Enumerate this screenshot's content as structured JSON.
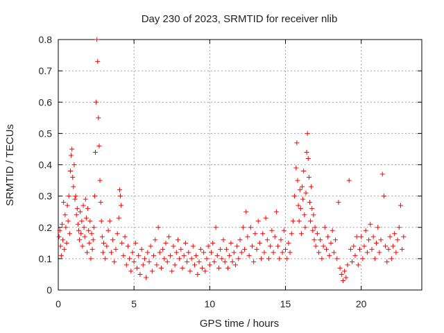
{
  "chart_data": {
    "type": "scatter",
    "title": "Day 230 of 2023, SRMTID for receiver nlib",
    "xlabel": "GPS time / hours",
    "ylabel": "SRMTID / TECUs",
    "xlim": [
      0,
      24
    ],
    "ylim": [
      0,
      0.8
    ],
    "xticks": [
      "0",
      "5",
      "10",
      "15",
      "20"
    ],
    "yticks": [
      "0",
      "0.1",
      "0.2",
      "0.3",
      "0.4",
      "0.5",
      "0.6",
      "0.7",
      "0.8"
    ],
    "grid": true,
    "marker": "+",
    "series": [
      {
        "name": "SRMTID",
        "color": "#ff0000",
        "points": [
          [
            0.05,
            0.17
          ],
          [
            0.1,
            0.19
          ],
          [
            0.15,
            0.14
          ],
          [
            0.2,
            0.11
          ],
          [
            0.25,
            0.21
          ],
          [
            0.3,
            0.16
          ],
          [
            0.35,
            0.28
          ],
          [
            0.4,
            0.13
          ],
          [
            0.45,
            0.24
          ],
          [
            0.5,
            0.2
          ],
          [
            0.55,
            0.15
          ],
          [
            0.6,
            0.27
          ],
          [
            0.65,
            0.22
          ],
          [
            0.7,
            0.3
          ],
          [
            0.75,
            0.18
          ],
          [
            0.8,
            0.38
          ],
          [
            0.85,
            0.43
          ],
          [
            0.9,
            0.45
          ],
          [
            0.95,
            0.36
          ],
          [
            1.0,
            0.33
          ],
          [
            1.05,
            0.4
          ],
          [
            1.1,
            0.29
          ],
          [
            1.15,
            0.3
          ],
          [
            1.2,
            0.24
          ],
          [
            1.25,
            0.26
          ],
          [
            1.3,
            0.21
          ],
          [
            1.35,
            0.19
          ],
          [
            1.4,
            0.16
          ],
          [
            1.45,
            0.25
          ],
          [
            1.5,
            0.18
          ],
          [
            1.55,
            0.22
          ],
          [
            1.6,
            0.14
          ],
          [
            1.65,
            0.27
          ],
          [
            1.7,
            0.2
          ],
          [
            1.75,
            0.17
          ],
          [
            1.8,
            0.29
          ],
          [
            1.85,
            0.23
          ],
          [
            1.9,
            0.12
          ],
          [
            1.95,
            0.26
          ],
          [
            2.0,
            0.19
          ],
          [
            2.05,
            0.15
          ],
          [
            2.1,
            0.22
          ],
          [
            2.15,
            0.1
          ],
          [
            2.2,
            0.18
          ],
          [
            2.25,
            0.13
          ],
          [
            2.3,
            0.16
          ],
          [
            2.35,
            0.2
          ],
          [
            2.4,
            0.3
          ],
          [
            2.45,
            0.44
          ],
          [
            2.5,
            0.6
          ],
          [
            2.55,
            0.8
          ],
          [
            2.6,
            0.73
          ],
          [
            2.65,
            0.55
          ],
          [
            2.7,
            0.46
          ],
          [
            2.75,
            0.35
          ],
          [
            2.8,
            0.28
          ],
          [
            2.85,
            0.22
          ],
          [
            2.9,
            0.17
          ],
          [
            2.95,
            0.12
          ],
          [
            3.0,
            0.15
          ],
          [
            3.1,
            0.1
          ],
          [
            3.2,
            0.14
          ],
          [
            3.3,
            0.19
          ],
          [
            3.4,
            0.22
          ],
          [
            3.5,
            0.12
          ],
          [
            3.6,
            0.16
          ],
          [
            3.7,
            0.09
          ],
          [
            3.8,
            0.13
          ],
          [
            3.9,
            0.18
          ],
          [
            4.0,
            0.23
          ],
          [
            4.05,
            0.32
          ],
          [
            4.1,
            0.3
          ],
          [
            4.15,
            0.27
          ],
          [
            4.2,
            0.15
          ],
          [
            4.3,
            0.11
          ],
          [
            4.4,
            0.17
          ],
          [
            4.5,
            0.08
          ],
          [
            4.6,
            0.14
          ],
          [
            4.7,
            0.1
          ],
          [
            4.8,
            0.06
          ],
          [
            4.9,
            0.12
          ],
          [
            5.0,
            0.09
          ],
          [
            5.1,
            0.15
          ],
          [
            5.2,
            0.07
          ],
          [
            5.3,
            0.11
          ],
          [
            5.4,
            0.05
          ],
          [
            5.5,
            0.13
          ],
          [
            5.6,
            0.08
          ],
          [
            5.7,
            0.1
          ],
          [
            5.8,
            0.04
          ],
          [
            5.9,
            0.12
          ],
          [
            6.0,
            0.09
          ],
          [
            6.1,
            0.14
          ],
          [
            6.2,
            0.06
          ],
          [
            6.3,
            0.11
          ],
          [
            6.4,
            0.16
          ],
          [
            6.5,
            0.08
          ],
          [
            6.6,
            0.2
          ],
          [
            6.7,
            0.12
          ],
          [
            6.8,
            0.07
          ],
          [
            6.9,
            0.13
          ],
          [
            7.0,
            0.1
          ],
          [
            7.1,
            0.15
          ],
          [
            7.2,
            0.09
          ],
          [
            7.3,
            0.17
          ],
          [
            7.4,
            0.11
          ],
          [
            7.5,
            0.06
          ],
          [
            7.6,
            0.14
          ],
          [
            7.7,
            0.08
          ],
          [
            7.8,
            0.12
          ],
          [
            7.9,
            0.16
          ],
          [
            8.0,
            0.1
          ],
          [
            8.1,
            0.13
          ],
          [
            8.2,
            0.07
          ],
          [
            8.3,
            0.11
          ],
          [
            8.4,
            0.15
          ],
          [
            8.5,
            0.09
          ],
          [
            8.6,
            0.12
          ],
          [
            8.7,
            0.06
          ],
          [
            8.8,
            0.1
          ],
          [
            8.9,
            0.14
          ],
          [
            9.0,
            0.08
          ],
          [
            9.1,
            0.11
          ],
          [
            9.2,
            0.05
          ],
          [
            9.3,
            0.09
          ],
          [
            9.4,
            0.13
          ],
          [
            9.5,
            0.07
          ],
          [
            9.6,
            0.12
          ],
          [
            9.7,
            0.06
          ],
          [
            9.8,
            0.1
          ],
          [
            9.9,
            0.14
          ],
          [
            10.0,
            0.08
          ],
          [
            10.1,
            0.12
          ],
          [
            10.2,
            0.15
          ],
          [
            10.3,
            0.09
          ],
          [
            10.4,
            0.2
          ],
          [
            10.5,
            0.11
          ],
          [
            10.6,
            0.07
          ],
          [
            10.7,
            0.13
          ],
          [
            10.8,
            0.1
          ],
          [
            10.9,
            0.16
          ],
          [
            11.0,
            0.09
          ],
          [
            11.1,
            0.13
          ],
          [
            11.2,
            0.07
          ],
          [
            11.3,
            0.11
          ],
          [
            11.4,
            0.15
          ],
          [
            11.5,
            0.09
          ],
          [
            11.6,
            0.12
          ],
          [
            11.7,
            0.08
          ],
          [
            11.8,
            0.14
          ],
          [
            11.9,
            0.1
          ],
          [
            12.0,
            0.16
          ],
          [
            12.1,
            0.12
          ],
          [
            12.2,
            0.2
          ],
          [
            12.3,
            0.13
          ],
          [
            12.4,
            0.25
          ],
          [
            12.5,
            0.17
          ],
          [
            12.6,
            0.11
          ],
          [
            12.7,
            0.2
          ],
          [
            12.8,
            0.14
          ],
          [
            12.9,
            0.09
          ],
          [
            13.0,
            0.18
          ],
          [
            13.1,
            0.13
          ],
          [
            13.2,
            0.22
          ],
          [
            13.3,
            0.15
          ],
          [
            13.4,
            0.1
          ],
          [
            13.5,
            0.18
          ],
          [
            13.6,
            0.12
          ],
          [
            13.7,
            0.23
          ],
          [
            13.8,
            0.16
          ],
          [
            13.9,
            0.1
          ],
          [
            14.0,
            0.14
          ],
          [
            14.1,
            0.19
          ],
          [
            14.2,
            0.12
          ],
          [
            14.3,
            0.17
          ],
          [
            14.4,
            0.25
          ],
          [
            14.5,
            0.14
          ],
          [
            14.6,
            0.1
          ],
          [
            14.7,
            0.16
          ],
          [
            14.8,
            0.12
          ],
          [
            14.9,
            0.19
          ],
          [
            15.0,
            0.13
          ],
          [
            15.1,
            0.1
          ],
          [
            15.2,
            0.15
          ],
          [
            15.3,
            0.12
          ],
          [
            15.4,
            0.18
          ],
          [
            15.5,
            0.22
          ],
          [
            15.6,
            0.3
          ],
          [
            15.7,
            0.39
          ],
          [
            15.75,
            0.47
          ],
          [
            15.8,
            0.35
          ],
          [
            15.85,
            0.27
          ],
          [
            15.9,
            0.22
          ],
          [
            15.95,
            0.32
          ],
          [
            16.0,
            0.26
          ],
          [
            16.05,
            0.18
          ],
          [
            16.1,
            0.33
          ],
          [
            16.15,
            0.29
          ],
          [
            16.2,
            0.38
          ],
          [
            16.25,
            0.24
          ],
          [
            16.3,
            0.2
          ],
          [
            16.35,
            0.31
          ],
          [
            16.4,
            0.44
          ],
          [
            16.45,
            0.5
          ],
          [
            16.5,
            0.42
          ],
          [
            16.55,
            0.36
          ],
          [
            16.6,
            0.28
          ],
          [
            16.65,
            0.22
          ],
          [
            16.7,
            0.33
          ],
          [
            16.75,
            0.26
          ],
          [
            16.8,
            0.19
          ],
          [
            16.85,
            0.24
          ],
          [
            16.9,
            0.16
          ],
          [
            16.95,
            0.2
          ],
          [
            17.0,
            0.14
          ],
          [
            17.1,
            0.18
          ],
          [
            17.2,
            0.12
          ],
          [
            17.3,
            0.16
          ],
          [
            17.4,
            0.1
          ],
          [
            17.5,
            0.14
          ],
          [
            17.6,
            0.2
          ],
          [
            17.7,
            0.13
          ],
          [
            17.8,
            0.17
          ],
          [
            17.9,
            0.11
          ],
          [
            18.0,
            0.15
          ],
          [
            18.1,
            0.19
          ],
          [
            18.2,
            0.12
          ],
          [
            18.3,
            0.16
          ],
          [
            18.4,
            0.1
          ],
          [
            18.5,
            0.28
          ],
          [
            18.6,
            0.07
          ],
          [
            18.7,
            0.05
          ],
          [
            18.8,
            0.03
          ],
          [
            18.9,
            0.06
          ],
          [
            19.0,
            0.04
          ],
          [
            19.1,
            0.08
          ],
          [
            19.2,
            0.35
          ],
          [
            19.3,
            0.13
          ],
          [
            19.4,
            0.09
          ],
          [
            19.5,
            0.14
          ],
          [
            19.6,
            0.11
          ],
          [
            19.7,
            0.17
          ],
          [
            19.8,
            0.08
          ],
          [
            19.9,
            0.13
          ],
          [
            20.0,
            0.17
          ],
          [
            20.1,
            0.1
          ],
          [
            20.2,
            0.14
          ],
          [
            20.3,
            0.19
          ],
          [
            20.4,
            0.12
          ],
          [
            20.5,
            0.16
          ],
          [
            20.6,
            0.21
          ],
          [
            20.7,
            0.13
          ],
          [
            20.8,
            0.17
          ],
          [
            20.9,
            0.1
          ],
          [
            21.0,
            0.15
          ],
          [
            21.1,
            0.2
          ],
          [
            21.2,
            0.12
          ],
          [
            21.3,
            0.16
          ],
          [
            21.4,
            0.37
          ],
          [
            21.5,
            0.3
          ],
          [
            21.6,
            0.14
          ],
          [
            21.7,
            0.09
          ],
          [
            21.8,
            0.13
          ],
          [
            21.9,
            0.17
          ],
          [
            22.0,
            0.1
          ],
          [
            22.1,
            0.14
          ],
          [
            22.2,
            0.18
          ],
          [
            22.3,
            0.12
          ],
          [
            22.4,
            0.16
          ],
          [
            22.5,
            0.2
          ],
          [
            22.6,
            0.27
          ],
          [
            22.7,
            0.13
          ],
          [
            22.8,
            0.17
          ]
        ]
      }
    ]
  }
}
